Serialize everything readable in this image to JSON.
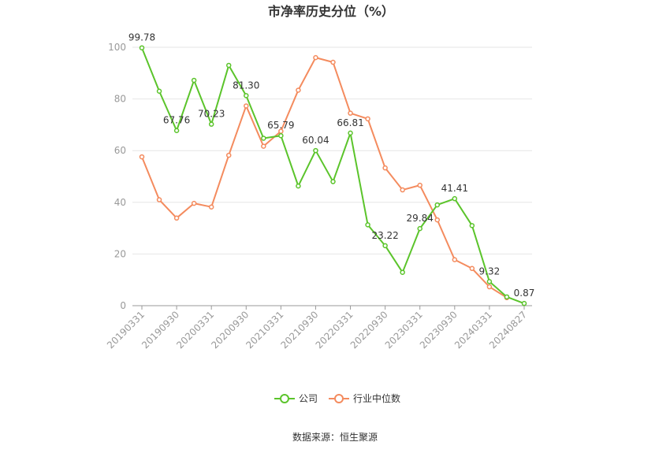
{
  "chart_data": {
    "type": "line",
    "title": "市净率历史分位（%）",
    "source": "数据来源：恒生聚源",
    "ylim": [
      0,
      100
    ],
    "y_ticks": [
      "0",
      "20",
      "40",
      "60",
      "80",
      "100"
    ],
    "x_tick_labels": [
      "20190331",
      "20190930",
      "20200331",
      "20200930",
      "20210331",
      "20210930",
      "20220331",
      "20220930",
      "20230331",
      "20230930",
      "20240331",
      "20240827"
    ],
    "x": [
      "20190331",
      "20190630",
      "20190930",
      "20191231",
      "20200331",
      "20200630",
      "20200930",
      "20201231",
      "20210331",
      "20210630",
      "20210930",
      "20211231",
      "20220331",
      "20220630",
      "20220930",
      "20221231",
      "20230331",
      "20230630",
      "20230930",
      "20231231",
      "20240331",
      "20240630",
      "20240827"
    ],
    "legend_position": "bottom",
    "grid": true,
    "series": [
      {
        "name": "公司",
        "color": "#5bc42b",
        "values": [
          99.78,
          83.0,
          67.76,
          87.2,
          70.23,
          93.0,
          81.3,
          64.8,
          65.79,
          46.3,
          60.04,
          48.0,
          66.81,
          31.3,
          23.22,
          12.9,
          29.84,
          39.0,
          41.41,
          31.0,
          9.32,
          3.4,
          0.87
        ],
        "labels": {
          "0": "99.78",
          "2": "67.76",
          "4": "70.23",
          "6": "81.30",
          "8": "65.79",
          "10": "60.04",
          "12": "66.81",
          "14": "23.22",
          "16": "29.84",
          "18": "41.41",
          "20": "9.32",
          "22": "0.87"
        }
      },
      {
        "name": "行业中位数",
        "color": "#f48b5e",
        "values": [
          57.6,
          41.0,
          33.9,
          39.6,
          38.2,
          58.2,
          77.3,
          61.7,
          67.5,
          83.4,
          96.0,
          94.2,
          74.5,
          72.3,
          53.3,
          44.8,
          46.6,
          33.2,
          17.8,
          14.4,
          7.3,
          3.1,
          null
        ],
        "labels": {}
      }
    ]
  }
}
